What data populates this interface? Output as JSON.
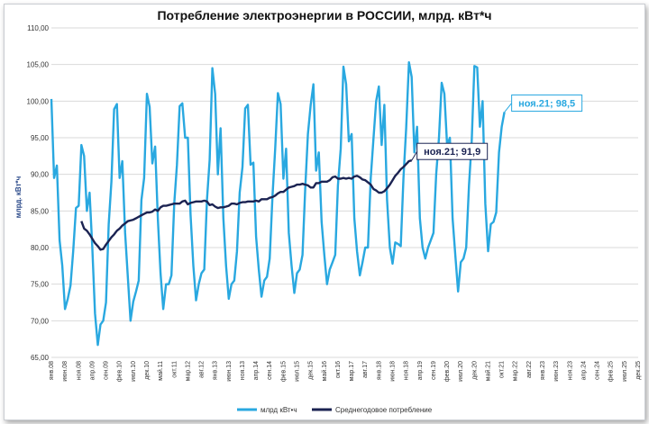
{
  "chart_data": {
    "type": "line",
    "title": "Потребление электроэнергии в РОССИИ, млрд. кВт*ч",
    "ylabel": "млрд. кВт*ч",
    "ylim": [
      65,
      110
    ],
    "yticks": [
      "65,00",
      "70,00",
      "75,00",
      "80,00",
      "85,00",
      "90,00",
      "95,00",
      "100,00",
      "105,00",
      "110,00"
    ],
    "x_ticks": [
      "янв.08",
      "июн.08",
      "ноя.08",
      "апр.09",
      "сен.09",
      "фев.10",
      "июл.10",
      "дек.10",
      "май.11",
      "окт.11",
      "мар.12",
      "авг.12",
      "янв.13",
      "июн.13",
      "ноя.13",
      "апр.14",
      "сен.14",
      "фев.15",
      "июл.15",
      "дек.15",
      "май.16",
      "окт.16",
      "мар.17",
      "авг.17",
      "янв.18",
      "июн.18",
      "ноя.18",
      "апр.19",
      "сен.19",
      "фев.20",
      "июл.20",
      "дек.20",
      "май.21",
      "окт.21",
      "мар.22",
      "авг.22",
      "янв.23",
      "июн.23",
      "ноя.23",
      "апр.24",
      "сен.24",
      "фев.25",
      "июл.25",
      "дек.25"
    ],
    "x_start": "янв.08",
    "x_end": "дек.25",
    "grid": true,
    "legend_position": "bottom",
    "series": [
      {
        "name": "млрд кВт•ч",
        "color": "#29a8e0",
        "values": [
          100.3,
          89.5,
          91.2,
          81.0,
          77.5,
          71.6,
          73.0,
          74.8,
          79.5,
          85.4,
          85.7,
          94.0,
          92.5,
          85.0,
          87.5,
          80.0,
          71.0,
          66.7,
          69.5,
          70.0,
          72.5,
          83.2,
          89.0,
          98.9,
          99.6,
          89.5,
          91.8,
          82.0,
          76.0,
          70.0,
          72.6,
          74.0,
          75.5,
          86.5,
          89.5,
          101.0,
          99.2,
          91.5,
          93.8,
          84.0,
          76.5,
          71.6,
          75.0,
          75.0,
          76.2,
          86.0,
          91.3,
          99.3,
          99.7,
          95.0,
          95.0,
          84.5,
          77.5,
          72.8,
          75.0,
          76.5,
          77.0,
          86.5,
          92.0,
          104.5,
          101.0,
          90.0,
          96.3,
          84.0,
          77.5,
          73.0,
          75.0,
          75.5,
          79.5,
          87.5,
          91.0,
          99.0,
          99.5,
          91.3,
          91.6,
          81.5,
          77.0,
          73.3,
          75.5,
          76.0,
          78.5,
          87.0,
          93.5,
          101.1,
          99.6,
          89.4,
          93.5,
          82.0,
          77.5,
          73.8,
          76.5,
          77.0,
          79.0,
          88.0,
          95.5,
          99.5,
          102.3,
          90.5,
          93.0,
          83.5,
          79.0,
          75.0,
          77.0,
          78.0,
          79.0,
          88.5,
          93.5,
          104.7,
          102.3,
          94.5,
          95.5,
          84.0,
          79.5,
          76.2,
          78.0,
          80.0,
          80.0,
          89.5,
          94.8,
          100.0,
          102.0,
          94.0,
          99.5,
          86.5,
          80.0,
          77.8,
          80.7,
          80.5,
          80.2,
          89.5,
          96.3,
          105.3,
          103.3,
          93.0,
          96.5,
          84.0,
          80.0,
          78.5,
          80.0,
          81.0,
          82.0,
          90.0,
          95.0,
          102.5,
          101.0,
          94.0,
          95.0,
          84.0,
          79.0,
          74.0,
          78.0,
          78.5,
          80.0,
          88.5,
          94.5,
          104.8,
          104.6,
          96.5,
          100.0,
          86.0,
          79.5,
          83.2,
          83.5,
          84.8,
          93.0,
          96.5,
          98.5
        ]
      },
      {
        "name": "Среднегодовое потребление",
        "color": "#1b2352",
        "start_month": 11,
        "values": [
          83.6,
          82.6,
          82.3,
          81.8,
          81.2,
          80.6,
          80.2,
          79.7,
          79.8,
          80.4,
          80.9,
          81.4,
          81.8,
          82.3,
          82.6,
          83.0,
          83.3,
          83.6,
          83.7,
          83.8,
          84.0,
          84.2,
          84.4,
          84.6,
          84.8,
          84.8,
          84.9,
          85.2,
          85.0,
          85.5,
          85.7,
          85.7,
          85.8,
          85.9,
          86.0,
          86.0,
          86.0,
          86.3,
          86.4,
          85.9,
          86.1,
          86.2,
          86.3,
          86.3,
          86.3,
          86.4,
          86.3,
          85.8,
          85.9,
          85.6,
          85.4,
          85.5,
          85.5,
          85.6,
          85.7,
          86.0,
          86.0,
          85.9,
          86.1,
          86.2,
          86.2,
          86.3,
          86.3,
          86.3,
          86.4,
          86.3,
          86.6,
          86.6,
          86.6,
          86.8,
          86.9,
          87.1,
          87.4,
          87.6,
          87.6,
          87.9,
          88.2,
          88.3,
          88.4,
          88.6,
          88.6,
          88.7,
          88.6,
          88.5,
          88.2,
          88.2,
          88.8,
          88.8,
          89.0,
          89.0,
          89.0,
          89.2,
          89.6,
          89.7,
          89.4,
          89.4,
          89.5,
          89.4,
          89.5,
          89.4,
          89.7,
          89.8,
          89.6,
          89.3,
          89.2,
          88.9,
          88.6,
          88.0,
          87.8,
          87.5,
          87.5,
          87.7,
          88.1,
          88.6,
          89.2,
          89.8,
          90.2,
          90.7,
          91.0,
          91.4,
          91.8,
          91.9
        ]
      }
    ],
    "annotations": [
      {
        "text": "ноя.21; 98,5",
        "series": 0,
        "month": "ноя.21",
        "value": 98.5,
        "color": "#29a8e0"
      },
      {
        "text": "ноя.21; 91,9",
        "series": 1,
        "month": "ноя.21",
        "value": 91.9,
        "color": "#1b2352"
      }
    ]
  }
}
